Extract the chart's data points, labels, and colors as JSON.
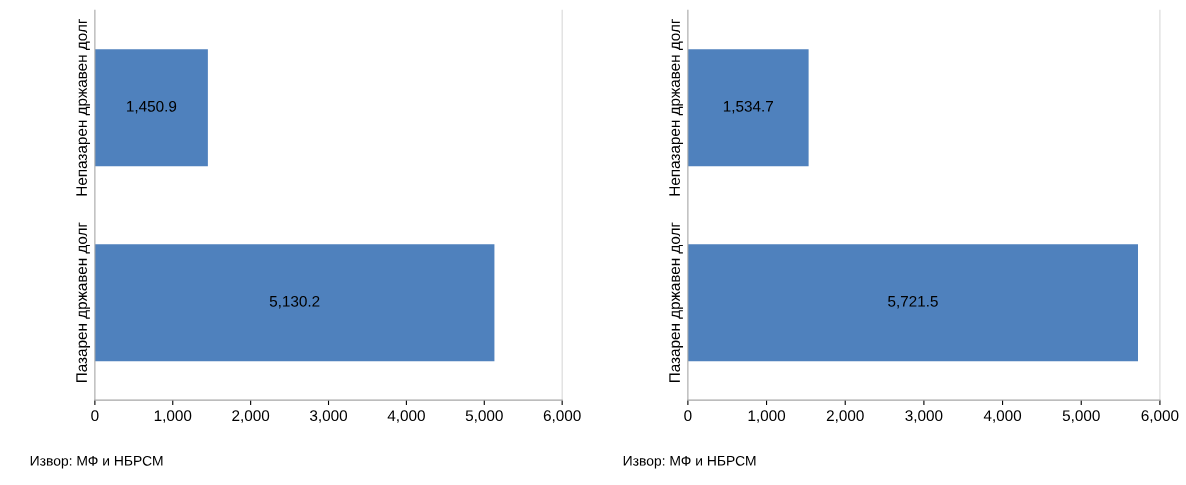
{
  "chart_data": [
    {
      "type": "bar",
      "orientation": "horizontal",
      "categories": [
        "Непазарен државен долг",
        "Пазарен државен долг"
      ],
      "values": [
        1450.9,
        5130.2
      ],
      "value_labels": [
        "1,450.9",
        "5,130.2"
      ],
      "color": "#4f81bd",
      "xlim": [
        0,
        6000
      ],
      "xticks": [
        0,
        {
          "value": 1000,
          "label": "1,000"
        },
        {
          "value": 2000,
          "label": "2,000"
        },
        {
          "value": 3000,
          "label": "3,000"
        },
        {
          "value": 4000,
          "label": "4,000"
        },
        {
          "value": 5000,
          "label": "5,000"
        },
        {
          "value": 6000,
          "label": "6,000"
        }
      ],
      "grid": false,
      "legend": false,
      "annotations": [
        "Извор: МФ и НБРСМ"
      ]
    },
    {
      "type": "bar",
      "orientation": "horizontal",
      "categories": [
        "Непазарен државен долг",
        "Пазарен државен долг"
      ],
      "values": [
        1534.7,
        5721.5
      ],
      "value_labels": [
        "1,534.7",
        "5,721.5"
      ],
      "color": "#4f81bd",
      "xlim": [
        0,
        6000
      ],
      "xticks": [
        0,
        {
          "value": 1000,
          "label": "1,000"
        },
        {
          "value": 2000,
          "label": "2,000"
        },
        {
          "value": 3000,
          "label": "3,000"
        },
        {
          "value": 4000,
          "label": "4,000"
        },
        {
          "value": 5000,
          "label": "5,000"
        },
        {
          "value": 6000,
          "label": "6,000"
        }
      ],
      "grid": false,
      "legend": false,
      "annotations": [
        "Извор: МФ и НБРСМ"
      ]
    }
  ]
}
